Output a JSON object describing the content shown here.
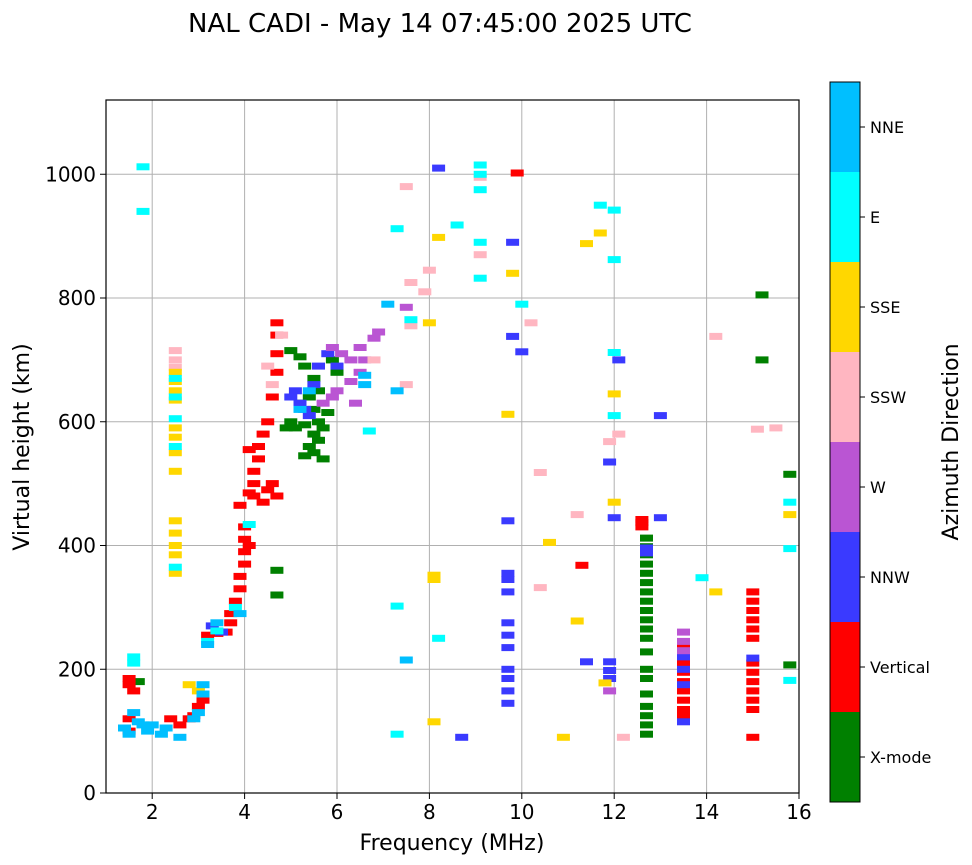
{
  "chart_data": {
    "type": "scatter",
    "title": "NAL CADI - May 14 07:45:00 2025 UTC",
    "xlabel": "Frequency (MHz)",
    "ylabel": "Virtual height (km)",
    "xlim": [
      1,
      16
    ],
    "ylim": [
      0,
      1120
    ],
    "xticks": [
      2,
      4,
      6,
      8,
      10,
      12,
      14,
      16
    ],
    "yticks": [
      0,
      200,
      400,
      600,
      800,
      1000
    ],
    "grid": true,
    "colorbar": {
      "title": "Azimuth Direction",
      "categories": [
        {
          "name": "X-mode",
          "color": "#008000"
        },
        {
          "name": "Vertical",
          "color": "#ff0000"
        },
        {
          "name": "NNW",
          "color": "#3a3aff"
        },
        {
          "name": "W",
          "color": "#ba55d3"
        },
        {
          "name": "SSW",
          "color": "#ffb6c1"
        },
        {
          "name": "SSE",
          "color": "#ffd700"
        },
        {
          "name": "E",
          "color": "#00ffff"
        },
        {
          "name": "NNE",
          "color": "#00bfff"
        }
      ]
    },
    "series": [
      {
        "name": "X-mode",
        "points": [
          [
            5.0,
            715
          ],
          [
            5.2,
            705
          ],
          [
            5.3,
            690
          ],
          [
            5.5,
            670
          ],
          [
            5.6,
            650
          ],
          [
            5.4,
            640
          ],
          [
            5.2,
            630
          ],
          [
            5.5,
            620
          ],
          [
            5.6,
            600
          ],
          [
            5.7,
            590
          ],
          [
            5.5,
            580
          ],
          [
            5.6,
            570
          ],
          [
            5.4,
            560
          ],
          [
            5.5,
            550
          ],
          [
            5.3,
            545
          ],
          [
            5.7,
            540
          ],
          [
            5.8,
            615
          ],
          [
            5.9,
            700
          ],
          [
            6.0,
            680
          ],
          [
            5.1,
            590
          ],
          [
            5.3,
            595
          ],
          [
            5.0,
            600
          ],
          [
            4.9,
            590
          ],
          [
            4.7,
            360
          ],
          [
            4.7,
            320
          ],
          [
            15.2,
            805
          ],
          [
            15.2,
            700
          ],
          [
            15.8,
            515
          ],
          [
            15.8,
            207
          ],
          [
            1.7,
            180
          ],
          [
            12.7,
            412
          ],
          [
            12.7,
            398
          ],
          [
            12.7,
            385
          ],
          [
            12.7,
            370
          ],
          [
            12.7,
            355
          ],
          [
            12.7,
            340
          ],
          [
            12.7,
            325
          ],
          [
            12.7,
            310
          ],
          [
            12.7,
            295
          ],
          [
            12.7,
            280
          ],
          [
            12.7,
            265
          ],
          [
            12.7,
            250
          ],
          [
            12.7,
            228
          ],
          [
            12.7,
            200
          ],
          [
            12.7,
            185
          ],
          [
            12.7,
            160
          ],
          [
            12.7,
            140
          ],
          [
            12.7,
            125
          ],
          [
            12.7,
            110
          ],
          [
            12.7,
            95
          ]
        ]
      },
      {
        "name": "Vertical",
        "points": [
          [
            1.5,
            185
          ],
          [
            1.5,
            175
          ],
          [
            1.6,
            165
          ],
          [
            1.5,
            120
          ],
          [
            1.5,
            100
          ],
          [
            2.4,
            120
          ],
          [
            2.6,
            110
          ],
          [
            2.8,
            120
          ],
          [
            2.9,
            125
          ],
          [
            3.0,
            140
          ],
          [
            3.1,
            150
          ],
          [
            3.2,
            255
          ],
          [
            3.4,
            258
          ],
          [
            3.6,
            260
          ],
          [
            3.7,
            275
          ],
          [
            3.7,
            290
          ],
          [
            3.8,
            310
          ],
          [
            3.9,
            330
          ],
          [
            3.9,
            350
          ],
          [
            4.0,
            370
          ],
          [
            4.0,
            390
          ],
          [
            4.0,
            410
          ],
          [
            4.0,
            430
          ],
          [
            3.9,
            465
          ],
          [
            4.1,
            485
          ],
          [
            4.2,
            500
          ],
          [
            4.2,
            520
          ],
          [
            4.3,
            540
          ],
          [
            4.1,
            555
          ],
          [
            4.3,
            560
          ],
          [
            4.4,
            580
          ],
          [
            4.5,
            600
          ],
          [
            4.6,
            640
          ],
          [
            4.7,
            680
          ],
          [
            4.7,
            710
          ],
          [
            4.7,
            740
          ],
          [
            4.7,
            760
          ],
          [
            4.6,
            500
          ],
          [
            4.7,
            480
          ],
          [
            4.4,
            470
          ],
          [
            4.5,
            490
          ],
          [
            4.2,
            480
          ],
          [
            4.1,
            400
          ],
          [
            9.9,
            1002
          ],
          [
            11.3,
            368
          ],
          [
            12.6,
            442
          ],
          [
            12.6,
            437
          ],
          [
            12.6,
            430
          ],
          [
            13.5,
            240
          ],
          [
            13.5,
            225
          ],
          [
            13.5,
            210
          ],
          [
            13.5,
            195
          ],
          [
            13.5,
            180
          ],
          [
            13.5,
            165
          ],
          [
            13.5,
            150
          ],
          [
            13.5,
            135
          ],
          [
            13.5,
            125
          ],
          [
            15.0,
            325
          ],
          [
            15.0,
            310
          ],
          [
            15.0,
            295
          ],
          [
            15.0,
            280
          ],
          [
            15.0,
            265
          ],
          [
            15.0,
            250
          ],
          [
            15.0,
            210
          ],
          [
            15.0,
            195
          ],
          [
            15.0,
            180
          ],
          [
            15.0,
            165
          ],
          [
            15.0,
            150
          ],
          [
            15.0,
            135
          ],
          [
            15.0,
            90
          ]
        ]
      },
      {
        "name": "NNW",
        "points": [
          [
            3.3,
            270
          ],
          [
            3.5,
            260
          ],
          [
            5.1,
            650
          ],
          [
            5.2,
            630
          ],
          [
            5.3,
            620
          ],
          [
            5.0,
            640
          ],
          [
            5.4,
            610
          ],
          [
            5.5,
            660
          ],
          [
            5.6,
            690
          ],
          [
            5.8,
            710
          ],
          [
            6.0,
            690
          ],
          [
            8.2,
            1010
          ],
          [
            8.7,
            90
          ],
          [
            9.7,
            440
          ],
          [
            9.7,
            355
          ],
          [
            9.7,
            345
          ],
          [
            9.7,
            325
          ],
          [
            9.7,
            275
          ],
          [
            9.7,
            255
          ],
          [
            9.7,
            235
          ],
          [
            9.7,
            200
          ],
          [
            9.7,
            185
          ],
          [
            9.7,
            165
          ],
          [
            9.7,
            145
          ],
          [
            9.8,
            890
          ],
          [
            9.8,
            738
          ],
          [
            10.0,
            713
          ],
          [
            11.4,
            212
          ],
          [
            11.9,
            212
          ],
          [
            11.9,
            198
          ],
          [
            11.9,
            185
          ],
          [
            11.9,
            535
          ],
          [
            12.0,
            445
          ],
          [
            12.1,
            700
          ],
          [
            13.0,
            610
          ],
          [
            13.0,
            445
          ],
          [
            12.7,
            396
          ],
          [
            12.7,
            388
          ],
          [
            13.5,
            220
          ],
          [
            13.5,
            200
          ],
          [
            13.5,
            175
          ],
          [
            13.5,
            115
          ],
          [
            15.0,
            218
          ]
        ]
      },
      {
        "name": "W",
        "points": [
          [
            5.9,
            720
          ],
          [
            6.1,
            710
          ],
          [
            6.3,
            700
          ],
          [
            6.5,
            680
          ],
          [
            6.5,
            720
          ],
          [
            6.6,
            700
          ],
          [
            6.8,
            735
          ],
          [
            6.9,
            745
          ],
          [
            6.3,
            665
          ],
          [
            6.0,
            650
          ],
          [
            6.4,
            630
          ],
          [
            5.9,
            640
          ],
          [
            5.7,
            630
          ],
          [
            7.5,
            785
          ],
          [
            11.9,
            165
          ],
          [
            13.5,
            260
          ],
          [
            13.5,
            245
          ],
          [
            13.5,
            230
          ]
        ]
      },
      {
        "name": "SSW",
        "points": [
          [
            2.5,
            715
          ],
          [
            2.5,
            700
          ],
          [
            2.5,
            688
          ],
          [
            7.5,
            980
          ],
          [
            7.5,
            660
          ],
          [
            7.6,
            825
          ],
          [
            7.6,
            755
          ],
          [
            7.9,
            810
          ],
          [
            8.0,
            845
          ],
          [
            9.1,
            995
          ],
          [
            9.1,
            870
          ],
          [
            10.2,
            760
          ],
          [
            10.4,
            518
          ],
          [
            10.4,
            332
          ],
          [
            11.2,
            450
          ],
          [
            11.9,
            568
          ],
          [
            12.1,
            580
          ],
          [
            12.2,
            90
          ],
          [
            14.2,
            738
          ],
          [
            15.5,
            590
          ],
          [
            15.1,
            588
          ],
          [
            4.5,
            690
          ],
          [
            4.6,
            660
          ],
          [
            4.8,
            740
          ],
          [
            6.8,
            700
          ]
        ]
      },
      {
        "name": "SSE",
        "points": [
          [
            2.5,
            440
          ],
          [
            2.5,
            420
          ],
          [
            2.5,
            400
          ],
          [
            2.5,
            385
          ],
          [
            2.5,
            355
          ],
          [
            2.5,
            590
          ],
          [
            2.5,
            575
          ],
          [
            2.5,
            550
          ],
          [
            2.5,
            520
          ],
          [
            2.5,
            635
          ],
          [
            2.5,
            650
          ],
          [
            2.5,
            665
          ],
          [
            2.5,
            680
          ],
          [
            2.8,
            175
          ],
          [
            3.0,
            165
          ],
          [
            8.2,
            898
          ],
          [
            8.0,
            760
          ],
          [
            8.1,
            352
          ],
          [
            8.1,
            345
          ],
          [
            8.1,
            115
          ],
          [
            9.7,
            612
          ],
          [
            9.8,
            840
          ],
          [
            10.6,
            405
          ],
          [
            10.9,
            90
          ],
          [
            11.2,
            278
          ],
          [
            11.4,
            888
          ],
          [
            11.7,
            905
          ],
          [
            11.8,
            178
          ],
          [
            12.0,
            470
          ],
          [
            12.0,
            645
          ],
          [
            14.2,
            325
          ],
          [
            15.8,
            450
          ]
        ]
      },
      {
        "name": "E",
        "points": [
          [
            1.8,
            1012
          ],
          [
            1.8,
            940
          ],
          [
            2.5,
            670
          ],
          [
            2.5,
            640
          ],
          [
            2.5,
            605
          ],
          [
            2.5,
            560
          ],
          [
            2.5,
            365
          ],
          [
            3.2,
            245
          ],
          [
            3.4,
            262
          ],
          [
            3.8,
            300
          ],
          [
            4.1,
            434
          ],
          [
            6.7,
            585
          ],
          [
            7.3,
            912
          ],
          [
            7.3,
            302
          ],
          [
            7.3,
            95
          ],
          [
            7.6,
            765
          ],
          [
            8.2,
            250
          ],
          [
            8.6,
            918
          ],
          [
            9.1,
            1015
          ],
          [
            9.1,
            1000
          ],
          [
            9.1,
            975
          ],
          [
            9.1,
            890
          ],
          [
            9.1,
            832
          ],
          [
            10.0,
            790
          ],
          [
            11.7,
            950
          ],
          [
            12.0,
            942
          ],
          [
            12.0,
            862
          ],
          [
            12.0,
            712
          ],
          [
            12.0,
            610
          ],
          [
            13.9,
            348
          ],
          [
            15.8,
            470
          ],
          [
            15.8,
            395
          ],
          [
            15.8,
            182
          ],
          [
            1.6,
            220
          ],
          [
            1.6,
            210
          ]
        ]
      },
      {
        "name": "NNE",
        "points": [
          [
            1.4,
            105
          ],
          [
            1.5,
            95
          ],
          [
            1.6,
            130
          ],
          [
            1.7,
            115
          ],
          [
            1.8,
            110
          ],
          [
            1.9,
            100
          ],
          [
            2.0,
            110
          ],
          [
            2.2,
            95
          ],
          [
            2.3,
            105
          ],
          [
            2.6,
            90
          ],
          [
            2.9,
            120
          ],
          [
            3.0,
            130
          ],
          [
            3.1,
            160
          ],
          [
            3.1,
            175
          ],
          [
            3.2,
            240
          ],
          [
            3.4,
            275
          ],
          [
            3.9,
            290
          ],
          [
            5.2,
            620
          ],
          [
            5.4,
            650
          ],
          [
            6.6,
            675
          ],
          [
            6.6,
            660
          ],
          [
            7.1,
            790
          ],
          [
            7.3,
            650
          ],
          [
            7.5,
            215
          ]
        ]
      }
    ]
  }
}
